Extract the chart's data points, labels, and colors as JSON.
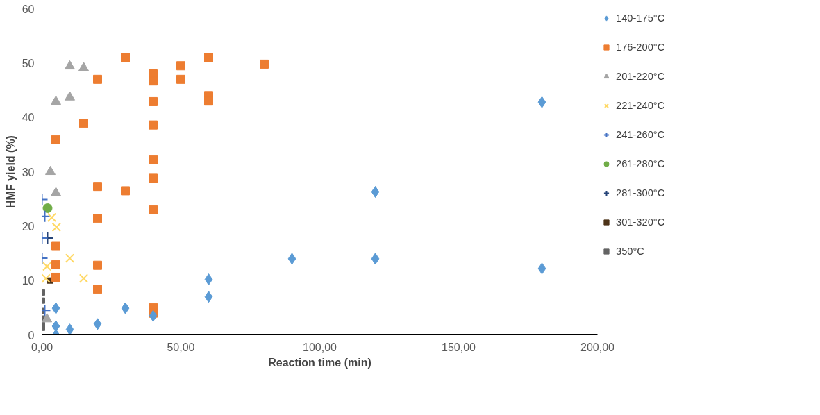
{
  "chart_data": {
    "type": "scatter",
    "xlabel": "Reaction time (min)",
    "ylabel": "HMF yield (%)",
    "xlim": [
      0,
      200
    ],
    "ylim": [
      0,
      60
    ],
    "xticks": [
      {
        "value": 0,
        "label": "0,00"
      },
      {
        "value": 50,
        "label": "50,00"
      },
      {
        "value": 100,
        "label": "100,00"
      },
      {
        "value": 150,
        "label": "150,00"
      },
      {
        "value": 200,
        "label": "200,00"
      }
    ],
    "yticks": [
      0,
      10,
      20,
      30,
      40,
      50,
      60
    ],
    "grid": false,
    "legend": "right",
    "series": [
      {
        "name": "140-175°C",
        "color": "#5b9bd5",
        "marker": "diamond",
        "x": [
          5,
          5,
          5,
          10,
          20,
          30,
          40,
          60,
          60,
          90,
          120,
          120,
          180,
          180
        ],
        "values": [
          4.9,
          1.6,
          0,
          1,
          2,
          4.9,
          3.5,
          10.2,
          7,
          14,
          14,
          26.3,
          42.8,
          12.2
        ]
      },
      {
        "name": "176-200°C",
        "color": "#ed7d31",
        "marker": "square",
        "x": [
          5,
          5,
          5,
          5,
          15,
          20,
          20,
          20,
          20,
          20,
          30,
          30,
          40,
          40,
          40,
          40,
          40,
          40,
          40,
          40,
          40,
          50,
          50,
          60,
          60,
          60,
          80
        ],
        "values": [
          35.9,
          16.4,
          12.9,
          10.6,
          38.9,
          47,
          27.3,
          21.4,
          12.8,
          8.4,
          51,
          26.5,
          48,
          46.7,
          42.9,
          38.6,
          32.2,
          28.8,
          23,
          5,
          4,
          49.5,
          47,
          51,
          44,
          43,
          49.8
        ]
      },
      {
        "name": "201-220°C",
        "color": "#a5a5a5",
        "marker": "triangle",
        "x": [
          3,
          5,
          5,
          10,
          10,
          15,
          1.8
        ],
        "values": [
          30,
          26.1,
          42.9,
          49.4,
          43.7,
          49.1,
          2.9
        ]
      },
      {
        "name": "221-240°C",
        "color": "#ffd966",
        "marker": "x",
        "x": [
          3.5,
          5.2,
          10,
          15,
          1.8,
          1.4
        ],
        "values": [
          21.6,
          19.8,
          14.1,
          10.4,
          12.6,
          10.4
        ]
      },
      {
        "name": "241-260°C",
        "color": "#4472c4",
        "marker": "cross",
        "x": [
          0,
          1,
          0,
          0,
          1
        ],
        "values": [
          24.9,
          21.8,
          17.8,
          14.1,
          4.5
        ]
      },
      {
        "name": "261-280°C",
        "color": "#70ad47",
        "marker": "circle",
        "x": [
          2
        ],
        "values": [
          23.3
        ]
      },
      {
        "name": "281-300°C",
        "color": "#264478",
        "marker": "cross",
        "x": [
          2
        ],
        "values": [
          17.8
        ]
      },
      {
        "name": "301-320°C",
        "color": "#4d3319",
        "marker": "square",
        "x": [
          2.9
        ],
        "values": [
          10
        ]
      },
      {
        "name": "350°C",
        "color": "#636363",
        "marker": "square",
        "x": [
          0,
          0,
          0,
          0,
          0,
          0
        ],
        "values": [
          7.8,
          6.3,
          4.4,
          3,
          1.8,
          1.3
        ]
      }
    ]
  }
}
